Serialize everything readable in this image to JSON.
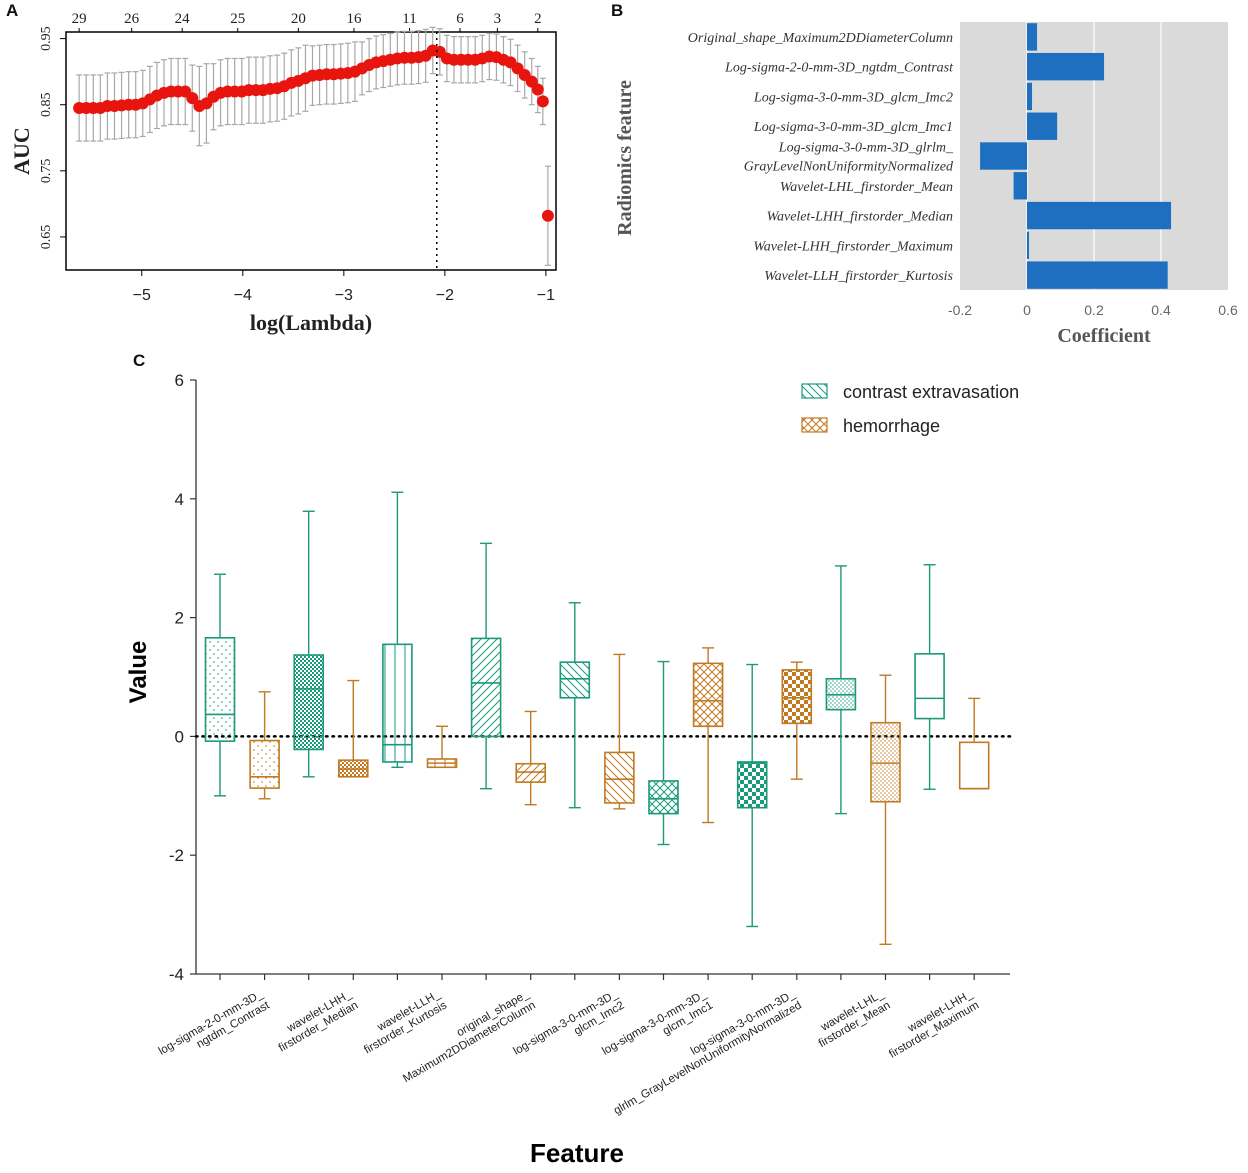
{
  "panels": {
    "a": "A",
    "b": "B",
    "c": "C"
  },
  "colors": {
    "cv_red": "#e8150f",
    "cv_error": "#a8a8a8",
    "bar_blue": "#1f6fc0",
    "bar_bg": "#dadada",
    "green": "#1a9a79",
    "orange": "#c07a22"
  },
  "chart_data": [
    {
      "id": "lasso_cv",
      "type": "scatter",
      "title": "",
      "xlabel": "log(Lambda)",
      "ylabel": "AUC",
      "xlim": [
        -5.75,
        -0.9
      ],
      "ylim": [
        0.6,
        0.96
      ],
      "xticks": [
        -5,
        -4,
        -3,
        -2,
        -1
      ],
      "xtick_labels": [
        "−5",
        "−4",
        "−3",
        "−2",
        "−1"
      ],
      "yticks": [
        0.65,
        0.75,
        0.85,
        0.95
      ],
      "ytick_labels": [
        "0.65",
        "0.75",
        "0.85",
        "0.95"
      ],
      "top_axis": {
        "positions": [
          -5.62,
          -5.1,
          -4.6,
          -4.05,
          -3.45,
          -2.9,
          -2.35,
          -1.85,
          -1.48,
          -1.08
        ],
        "labels": [
          "29",
          "26",
          "24",
          "25",
          "20",
          "16",
          "11",
          "6",
          "3",
          "2"
        ]
      },
      "vline": -2.08,
      "points": [
        [
          -5.62,
          0.845,
          0.05
        ],
        [
          -5.55,
          0.845,
          0.05
        ],
        [
          -5.48,
          0.845,
          0.05
        ],
        [
          -5.41,
          0.845,
          0.05
        ],
        [
          -5.34,
          0.848,
          0.05
        ],
        [
          -5.27,
          0.848,
          0.05
        ],
        [
          -5.2,
          0.849,
          0.05
        ],
        [
          -5.13,
          0.85,
          0.05
        ],
        [
          -5.06,
          0.85,
          0.05
        ],
        [
          -4.99,
          0.852,
          0.05
        ],
        [
          -4.92,
          0.858,
          0.05
        ],
        [
          -4.85,
          0.864,
          0.05
        ],
        [
          -4.78,
          0.868,
          0.05
        ],
        [
          -4.71,
          0.87,
          0.05
        ],
        [
          -4.64,
          0.87,
          0.05
        ],
        [
          -4.57,
          0.87,
          0.05
        ],
        [
          -4.5,
          0.86,
          0.05
        ],
        [
          -4.43,
          0.848,
          0.06
        ],
        [
          -4.36,
          0.852,
          0.06
        ],
        [
          -4.29,
          0.862,
          0.05
        ],
        [
          -4.22,
          0.868,
          0.05
        ],
        [
          -4.15,
          0.87,
          0.05
        ],
        [
          -4.08,
          0.87,
          0.05
        ],
        [
          -4.01,
          0.87,
          0.05
        ],
        [
          -3.94,
          0.872,
          0.05
        ],
        [
          -3.87,
          0.872,
          0.05
        ],
        [
          -3.8,
          0.872,
          0.05
        ],
        [
          -3.73,
          0.874,
          0.05
        ],
        [
          -3.66,
          0.875,
          0.05
        ],
        [
          -3.59,
          0.878,
          0.05
        ],
        [
          -3.52,
          0.883,
          0.05
        ],
        [
          -3.45,
          0.886,
          0.05
        ],
        [
          -3.38,
          0.89,
          0.05
        ],
        [
          -3.31,
          0.894,
          0.045
        ],
        [
          -3.24,
          0.895,
          0.045
        ],
        [
          -3.17,
          0.896,
          0.045
        ],
        [
          -3.1,
          0.896,
          0.045
        ],
        [
          -3.03,
          0.897,
          0.045
        ],
        [
          -2.96,
          0.898,
          0.045
        ],
        [
          -2.89,
          0.9,
          0.045
        ],
        [
          -2.82,
          0.905,
          0.04
        ],
        [
          -2.75,
          0.91,
          0.04
        ],
        [
          -2.68,
          0.914,
          0.04
        ],
        [
          -2.61,
          0.916,
          0.04
        ],
        [
          -2.54,
          0.918,
          0.04
        ],
        [
          -2.47,
          0.92,
          0.04
        ],
        [
          -2.4,
          0.921,
          0.04
        ],
        [
          -2.33,
          0.921,
          0.04
        ],
        [
          -2.26,
          0.922,
          0.04
        ],
        [
          -2.19,
          0.924,
          0.04
        ],
        [
          -2.12,
          0.932,
          0.035
        ],
        [
          -2.05,
          0.93,
          0.035
        ],
        [
          -1.98,
          0.92,
          0.035
        ],
        [
          -1.91,
          0.918,
          0.035
        ],
        [
          -1.84,
          0.918,
          0.035
        ],
        [
          -1.77,
          0.918,
          0.035
        ],
        [
          -1.7,
          0.918,
          0.035
        ],
        [
          -1.63,
          0.92,
          0.035
        ],
        [
          -1.56,
          0.923,
          0.035
        ],
        [
          -1.49,
          0.922,
          0.035
        ],
        [
          -1.42,
          0.918,
          0.035
        ],
        [
          -1.35,
          0.914,
          0.035
        ],
        [
          -1.28,
          0.905,
          0.035
        ],
        [
          -1.21,
          0.895,
          0.035
        ],
        [
          -1.14,
          0.885,
          0.035
        ],
        [
          -1.08,
          0.873,
          0.035
        ],
        [
          -1.03,
          0.855,
          0.035
        ],
        [
          -0.98,
          0.682,
          0.075
        ]
      ]
    },
    {
      "id": "coefficients",
      "type": "bar",
      "orientation": "horizontal",
      "title": "",
      "xlabel": "Coefficient",
      "ylabel": "Radiomics feature",
      "xlim": [
        -0.2,
        0.6
      ],
      "xticks": [
        -0.2,
        0,
        0.2,
        0.4,
        0.6
      ],
      "xtick_labels": [
        "-0.2",
        "0",
        "0.2",
        "0.4",
        "0.6"
      ],
      "categories": [
        [
          "Original_shape_Maximum2DDiameterColumn"
        ],
        [
          "Log-sigma-2-0-mm-3D_ngtdm_Contrast"
        ],
        [
          "Log-sigma-3-0-mm-3D_glcm_Imc2"
        ],
        [
          "Log-sigma-3-0-mm-3D_glcm_Imc1"
        ],
        [
          "Log-sigma-3-0-mm-3D_glrlm_",
          "GrayLevelNonUniformityNormalized"
        ],
        [
          "Wavelet-LHL_firstorder_Mean"
        ],
        [
          "Wavelet-LHH_firstorder_Median"
        ],
        [
          "Wavelet-LHH_firstorder_Maximum"
        ],
        [
          "Wavelet-LLH_firstorder_Kurtosis"
        ]
      ],
      "values": [
        0.03,
        0.23,
        0.015,
        0.09,
        -0.14,
        -0.04,
        0.43,
        0.005,
        0.42
      ]
    },
    {
      "id": "feature_boxplots",
      "type": "box",
      "title": "",
      "xlabel": "Feature",
      "ylabel": "Value",
      "ylim": [
        -4,
        6
      ],
      "yticks": [
        -4,
        -2,
        0,
        2,
        4,
        6
      ],
      "ytick_labels": [
        "-4",
        "-2",
        "0",
        "2",
        "4",
        "6"
      ],
      "reference_line": 0,
      "legend": [
        "contrast extravasation",
        "hemorrhage"
      ],
      "legend_position": "top-right",
      "categories": [
        [
          "log-sigma-2-0-mm-3D_",
          "ngtdm_Contrast"
        ],
        [
          "wavelet-LHH_",
          "firstorder_Median"
        ],
        [
          "wavelet-LLH_",
          "firstorder_Kurtosis"
        ],
        [
          "original_shape_",
          "Maximum2DDiameterColumn"
        ],
        [
          "log-sigma-3-0-mm-3D_",
          "glcm_Imc2"
        ],
        [
          "log-sigma-3-0-mm-3D_",
          "glcm_Imc1"
        ],
        [
          "log-sigma-3-0-mm-3D_",
          "glrlm_GrayLevelNonUniformityNormalized"
        ],
        [
          "wavelet-LHL_",
          "firstorder_Mean"
        ],
        [
          "wavelet-LHH_",
          "firstorder_Maximum"
        ]
      ],
      "series": [
        {
          "name": "contrast extravasation",
          "boxes": [
            {
              "min": -1.0,
              "q1": -0.08,
              "median": 0.37,
              "q3": 1.66,
              "max": 2.73,
              "pattern": "dots"
            },
            {
              "min": -0.68,
              "q1": -0.22,
              "median": 0.8,
              "q3": 1.37,
              "max": 3.79,
              "pattern": "grid"
            },
            {
              "min": -0.52,
              "q1": -0.43,
              "median": -0.14,
              "q3": 1.55,
              "max": 4.11,
              "pattern": "vlines"
            },
            {
              "min": -0.88,
              "q1": 0.0,
              "median": 0.9,
              "q3": 1.65,
              "max": 3.25,
              "pattern": "diagright"
            },
            {
              "min": -1.2,
              "q1": 0.65,
              "median": 0.97,
              "q3": 1.25,
              "max": 2.25,
              "pattern": "diagleft"
            },
            {
              "min": -1.82,
              "q1": -1.3,
              "median": -1.05,
              "q3": -0.75,
              "max": 1.26,
              "pattern": "diagcross"
            },
            {
              "min": -3.2,
              "q1": -1.2,
              "median": -0.45,
              "q3": -0.43,
              "max": 1.21,
              "pattern": "checker"
            },
            {
              "min": -1.3,
              "q1": 0.45,
              "median": 0.7,
              "q3": 0.97,
              "max": 2.87,
              "pattern": "dense"
            },
            {
              "min": -0.89,
              "q1": 0.3,
              "median": 0.64,
              "q3": 1.39,
              "max": 2.89,
              "pattern": "none"
            }
          ]
        },
        {
          "name": "hemorrhage",
          "boxes": [
            {
              "min": -1.05,
              "q1": -0.87,
              "median": -0.68,
              "q3": -0.07,
              "max": 0.75,
              "pattern": "dots"
            },
            {
              "min": -0.68,
              "q1": -0.68,
              "median": -0.55,
              "q3": -0.4,
              "max": 0.94,
              "pattern": "grid"
            },
            {
              "min": -0.52,
              "q1": -0.52,
              "median": -0.45,
              "q3": -0.38,
              "max": 0.17,
              "pattern": "vlines"
            },
            {
              "min": -1.15,
              "q1": -0.77,
              "median": -0.6,
              "q3": -0.46,
              "max": 0.42,
              "pattern": "diagright"
            },
            {
              "min": -1.22,
              "q1": -1.12,
              "median": -0.72,
              "q3": -0.27,
              "max": 1.38,
              "pattern": "diagleft"
            },
            {
              "min": -1.45,
              "q1": 0.17,
              "median": 0.6,
              "q3": 1.23,
              "max": 1.49,
              "pattern": "diagcross"
            },
            {
              "min": -0.72,
              "q1": 0.22,
              "median": 0.65,
              "q3": 1.12,
              "max": 1.25,
              "pattern": "checker"
            },
            {
              "min": -3.5,
              "q1": -1.1,
              "median": -0.45,
              "q3": 0.23,
              "max": 1.03,
              "pattern": "dense"
            },
            {
              "min": -0.88,
              "q1": -0.88,
              "median": -0.88,
              "q3": -0.1,
              "max": 0.64,
              "pattern": "none"
            }
          ]
        }
      ]
    }
  ]
}
